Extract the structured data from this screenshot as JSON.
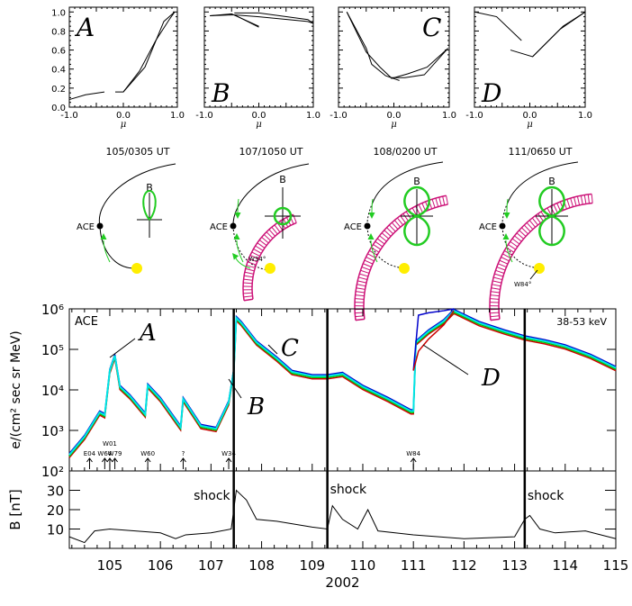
{
  "chart_data": [
    {
      "type": "line",
      "panel": "A",
      "xlabel": "μ",
      "xlim": [
        -1.0,
        1.0
      ],
      "ylim": [
        0.0,
        1.05
      ],
      "xticks": [
        "-1.0",
        "0.0",
        "1.0"
      ],
      "yticks": [
        "0.0",
        "0.2",
        "0.4",
        "0.6",
        "0.8",
        "1.0"
      ],
      "series": [
        {
          "name": "segment-1",
          "x": [
            -1.0,
            -0.7,
            -0.35
          ],
          "y": [
            0.08,
            0.13,
            0.16
          ]
        },
        {
          "name": "segment-2",
          "x": [
            -0.15,
            0.0,
            0.4,
            0.75,
            0.95
          ],
          "y": [
            0.16,
            0.16,
            0.42,
            0.9,
            1.0
          ]
        },
        {
          "name": "segment-3",
          "x": [
            0.0,
            0.3,
            0.6,
            0.85,
            0.95
          ],
          "y": [
            0.16,
            0.38,
            0.7,
            0.92,
            1.0
          ]
        }
      ]
    },
    {
      "type": "line",
      "panel": "B",
      "xlabel": "μ",
      "xlim": [
        -1.0,
        1.0
      ],
      "ylim": [
        0.0,
        1.05
      ],
      "xticks": [
        "-1.0",
        "0.0",
        "1.0"
      ],
      "series": [
        {
          "name": "segment-1",
          "x": [
            -0.9,
            -0.45,
            0.0
          ],
          "y": [
            0.96,
            0.97,
            0.84
          ]
        },
        {
          "name": "segment-2",
          "x": [
            -0.9,
            -0.5,
            0.0
          ],
          "y": [
            0.96,
            0.98,
            0.85
          ]
        },
        {
          "name": "segment-3",
          "x": [
            -0.45,
            0.0,
            0.9,
            1.0
          ],
          "y": [
            0.99,
            0.99,
            0.92,
            0.88
          ]
        },
        {
          "name": "segment-4",
          "x": [
            -0.45,
            0.0,
            0.9,
            1.0
          ],
          "y": [
            0.97,
            0.95,
            0.9,
            0.88
          ]
        }
      ]
    },
    {
      "type": "line",
      "panel": "C",
      "xlabel": "μ",
      "xlim": [
        -1.0,
        1.0
      ],
      "ylim": [
        0.0,
        1.05
      ],
      "xticks": [
        "-1.0",
        "0.0",
        "1.0"
      ],
      "series": [
        {
          "name": "segment-1",
          "x": [
            -0.85,
            -0.5,
            -0.4,
            -0.15,
            0.0,
            0.1
          ],
          "y": [
            1.0,
            0.62,
            0.45,
            0.33,
            0.3,
            0.28
          ]
        },
        {
          "name": "segment-2",
          "x": [
            -0.85,
            -0.5,
            -0.25,
            -0.05,
            0.2,
            0.55,
            0.95
          ],
          "y": [
            1.0,
            0.58,
            0.42,
            0.31,
            0.31,
            0.34,
            0.6
          ]
        },
        {
          "name": "segment-3",
          "x": [
            -0.05,
            0.25,
            0.6,
            0.98
          ],
          "y": [
            0.3,
            0.35,
            0.42,
            0.62
          ]
        }
      ]
    },
    {
      "type": "line",
      "panel": "D",
      "xlabel": "μ",
      "xlim": [
        -1.0,
        1.0
      ],
      "ylim": [
        0.0,
        1.05
      ],
      "xticks": [
        "-1.0",
        "0.0",
        "1.0"
      ],
      "series": [
        {
          "name": "segment-1",
          "x": [
            -1.0,
            -0.6,
            -0.15
          ],
          "y": [
            1.0,
            0.95,
            0.7
          ]
        },
        {
          "name": "segment-2",
          "x": [
            -0.35,
            0.05,
            0.55,
            1.0
          ],
          "y": [
            0.6,
            0.53,
            0.82,
            1.0
          ]
        },
        {
          "name": "segment-3",
          "x": [
            0.05,
            0.6,
            1.0
          ],
          "y": [
            0.53,
            0.85,
            1.0
          ]
        }
      ]
    },
    {
      "type": "line",
      "title": "",
      "annotation_top_left": "ACE",
      "annotation_top_right": "38-53 keV",
      "ylabel": "e/(cm² sec sr MeV)",
      "yscale": "log",
      "ylim": [
        100,
        1000000
      ],
      "yticks": [
        "10²",
        "10³",
        "10⁴",
        "10⁵",
        "10⁶"
      ],
      "xlim": [
        104.2,
        115.0
      ],
      "series_colors": [
        "#cc0000",
        "#00cc00",
        "#0000cc",
        "#00e5e5"
      ],
      "x": [
        104.2,
        104.5,
        104.8,
        104.9,
        105.0,
        105.1,
        105.2,
        105.4,
        105.7,
        105.75,
        106.0,
        106.4,
        106.45,
        106.8,
        107.1,
        107.35,
        107.45,
        107.5,
        107.6,
        107.9,
        108.3,
        108.6,
        109.0,
        109.3,
        109.6,
        110.0,
        110.5,
        110.95,
        111.0,
        111.05,
        111.3,
        111.6,
        111.8,
        112.3,
        112.8,
        113.2,
        113.6,
        114.0,
        114.5,
        115.0
      ],
      "values_cyan": [
        250,
        700,
        2800,
        2400,
        30000,
        70000,
        12000,
        7000,
        2500,
        13000,
        6000,
        1200,
        6000,
        1300,
        1100,
        5000,
        30000,
        600000,
        450000,
        150000,
        60000,
        28000,
        22000,
        22000,
        25000,
        12000,
        6000,
        3000,
        3000,
        150000,
        280000,
        500000,
        900000,
        450000,
        280000,
        200000,
        160000,
        120000,
        70000,
        35000
      ],
      "values_blue_peak_region": {
        "x": [
          111.0,
          111.1,
          111.3,
          111.6,
          111.8
        ],
        "y": [
          30000,
          700000,
          800000,
          900000,
          1000000
        ]
      },
      "values_red_peak_region": {
        "x": [
          111.0,
          111.1,
          111.3,
          111.6,
          111.8
        ],
        "y": [
          30000,
          90000,
          180000,
          400000,
          900000
        ]
      },
      "vertical_lines_at": [
        107.45,
        109.3,
        113.2
      ],
      "event_markers": [
        {
          "x": 104.6,
          "label": "E04"
        },
        {
          "x": 104.9,
          "label": "W64"
        },
        {
          "x": 105.0,
          "label": "W01"
        },
        {
          "x": 105.1,
          "label": "W79"
        },
        {
          "x": 105.75,
          "label": "W60"
        },
        {
          "x": 106.45,
          "label": "?"
        },
        {
          "x": 107.35,
          "label": "W34"
        },
        {
          "x": 111.0,
          "label": "W84"
        }
      ],
      "annotations": [
        {
          "label": "A",
          "x": 105.1,
          "y": 80000
        },
        {
          "label": "B",
          "x": 107.45,
          "y": 30000
        },
        {
          "label": "C",
          "x": 108.0,
          "y": 150000
        },
        {
          "label": "D",
          "x": 111.2,
          "y": 150000
        }
      ]
    },
    {
      "type": "line",
      "ylabel": "B [nT]",
      "ylim": [
        0,
        40
      ],
      "yticks": [
        "10",
        "20",
        "30"
      ],
      "xlabel": "2002",
      "xlim": [
        104.2,
        115.0
      ],
      "xticks": [
        "105",
        "106",
        "107",
        "108",
        "109",
        "110",
        "111",
        "112",
        "113",
        "114",
        "115"
      ],
      "x": [
        104.2,
        104.5,
        104.7,
        105.0,
        105.5,
        106.0,
        106.3,
        106.5,
        107.0,
        107.4,
        107.5,
        107.7,
        107.9,
        108.3,
        109.0,
        109.3,
        109.4,
        109.6,
        109.9,
        110.1,
        110.3,
        111.0,
        111.5,
        112.0,
        113.0,
        113.2,
        113.3,
        113.5,
        113.8,
        114.4,
        115.0
      ],
      "values": [
        6,
        3,
        9,
        10,
        9,
        8,
        5,
        7,
        8,
        10,
        30,
        25,
        15,
        14,
        11,
        10,
        22,
        15,
        10,
        20,
        9,
        7,
        6,
        5,
        6,
        15,
        17,
        10,
        8,
        9,
        5
      ],
      "vertical_lines_at": [
        107.45,
        109.3,
        113.2
      ],
      "annotations": [
        {
          "label": "shock",
          "x": 107.45
        },
        {
          "label": "shock",
          "x": 109.3
        },
        {
          "label": "shock",
          "x": 113.2
        }
      ]
    }
  ],
  "schematics": [
    {
      "time_label": "105/0305 UT",
      "spacecraft": "ACE",
      "field_label": "B",
      "angle_label": ""
    },
    {
      "time_label": "107/1050 UT",
      "spacecraft": "ACE",
      "field_label": "B",
      "angle_label": "W34°"
    },
    {
      "time_label": "108/0200 UT",
      "spacecraft": "ACE",
      "field_label": "B",
      "angle_label": ""
    },
    {
      "time_label": "111/0650 UT",
      "spacecraft": "ACE",
      "field_label": "B",
      "angle_label": "W84°"
    }
  ],
  "colors": {
    "shock_front": "#cc1177",
    "distribution": "#22cc22",
    "sun": "#ffee00",
    "arrow": "#22cc22"
  }
}
